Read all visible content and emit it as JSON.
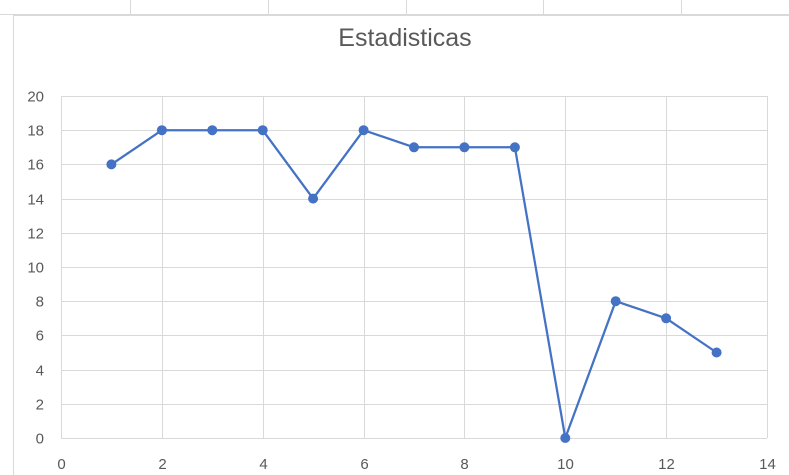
{
  "chart_data": {
    "type": "scatter",
    "title": "Estadisticas",
    "xlabel": "",
    "ylabel": "",
    "x": [
      1,
      2,
      3,
      4,
      5,
      6,
      7,
      8,
      9,
      10,
      11,
      12,
      13
    ],
    "series": [
      {
        "values": [
          16,
          18,
          18,
          18,
          14,
          18,
          17,
          17,
          17,
          0,
          8,
          7,
          5
        ]
      }
    ],
    "markers": true,
    "lines": true,
    "xlim": [
      0,
      14
    ],
    "ylim": [
      0,
      20
    ],
    "xticks": [
      "0",
      "2",
      "4",
      "6",
      "8",
      "10",
      "12",
      "14"
    ],
    "yticks": [
      "0",
      "2",
      "4",
      "6",
      "8",
      "10",
      "12",
      "14",
      "16",
      "18",
      "20"
    ],
    "grid": true,
    "legend": "none",
    "series_color": "#4472c4",
    "grid_color": "#d9d9d9"
  }
}
